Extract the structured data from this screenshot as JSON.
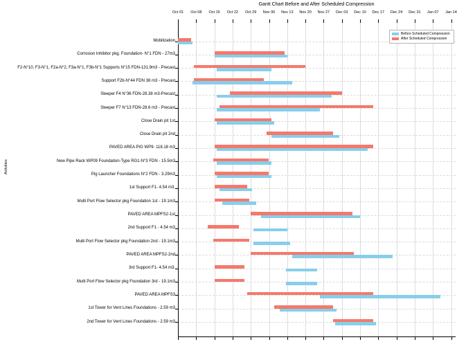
{
  "chart_data": {
    "type": "bar",
    "subtype": "gantt",
    "title": "Gantt Chart Before and After Scheduled Compression",
    "ylabel": "Activities",
    "x_tick_labels": [
      "Oct 01",
      "Oct 08",
      "Oct 15",
      "Oct 22",
      "Oct 29",
      "Nov 06",
      "Nov 13",
      "Nov 20",
      "Nov 27",
      "Dec 03",
      "Dec 10",
      "Dec 17",
      "Dec 24",
      "Dec 31",
      "Jan 07",
      "Jan 14"
    ],
    "x_axis_position": "top",
    "x_days_per_tick": 7,
    "grid": true,
    "legend": {
      "position": "upper-right",
      "entries": [
        {
          "label": "Before Scheduled Compression",
          "color": "#87CEEB"
        },
        {
          "label": "After Scheduled Compression",
          "color": "#F4796B"
        }
      ]
    },
    "colors": {
      "before": "#87CEEB",
      "after": "#F4796B",
      "grid": "#D9D9D9",
      "axis": "#000000"
    },
    "bar_units": "days after Oct 01",
    "tasks": [
      {
        "label": "Mobilization",
        "before": {
          "start": 0,
          "end": 5.5
        },
        "after": {
          "start": 0,
          "end": 5
        }
      },
      {
        "label": "Corrosion Inhibitor pkg. Foundation- N°1 FDN - 27m3",
        "before": {
          "start": 14,
          "end": 42
        },
        "after": {
          "start": 14,
          "end": 41
        }
      },
      {
        "label": "F2-N°10, F3-N°1, F2a-N°2, F3a-N°1, F3b-N°1 Supports N°15 FDN-131.9m3 - Precast",
        "before": {
          "start": 15,
          "end": 36
        },
        "after": {
          "start": 6,
          "end": 49
        }
      },
      {
        "label": "Support F2b-N°44 FDN 38 m3 - Precast",
        "before": {
          "start": 5.5,
          "end": 44
        },
        "after": {
          "start": 6,
          "end": 33
        }
      },
      {
        "label": "Sleeper F4 N°36 FDN-28.38 m3-Precast",
        "before": {
          "start": 15,
          "end": 59
        },
        "after": {
          "start": 20,
          "end": 63
        }
      },
      {
        "label": "Sleeper F7 N°13 FDN-28.6 m3 - Precast",
        "before": {
          "start": 15,
          "end": 54.5
        },
        "after": {
          "start": 16,
          "end": 75
        }
      },
      {
        "label": "Close Drain pit 1st",
        "before": {
          "start": 15,
          "end": 37
        },
        "after": {
          "start": 14,
          "end": 36
        }
      },
      {
        "label": "Close Drain pit 2nd",
        "before": {
          "start": 36,
          "end": 62
        },
        "after": {
          "start": 34,
          "end": 59.5
        }
      },
      {
        "label": "PAVED AREA PIG WP9- 118.18 m3",
        "before": {
          "start": 15,
          "end": 73
        },
        "after": {
          "start": 14,
          "end": 75
        }
      },
      {
        "label": "New Pipe Rack WP09 Foundation-Type RG1-N°3 FDN - 15.5m3",
        "before": {
          "start": 15,
          "end": 36
        },
        "after": {
          "start": 13.5,
          "end": 35
        }
      },
      {
        "label": "Pig Launcher Foundations N°2 FDN - 3.29m3",
        "before": {
          "start": 15,
          "end": 36
        },
        "after": {
          "start": 14,
          "end": 35
        }
      },
      {
        "label": "1st Support F1- 4.54 m3.",
        "before": {
          "start": 16,
          "end": 28.5
        },
        "after": {
          "start": 14,
          "end": 26.5
        }
      },
      {
        "label": "Multi Port Flow Selector pkg Foundation 1st - 19.1m3",
        "before": {
          "start": 17,
          "end": 30
        },
        "after": {
          "start": 14,
          "end": 27.5
        }
      },
      {
        "label": "PAVED AREA MPFS2-1st",
        "before": {
          "start": 32,
          "end": 70
        },
        "after": {
          "start": 28,
          "end": 67
        }
      },
      {
        "label": "2nd Support F1 - 4.54 m3",
        "before": {
          "start": 29,
          "end": 42
        },
        "after": {
          "start": 11.5,
          "end": 23.5
        }
      },
      {
        "label": "Multi Port Flow Selector pkg Foundation 2nd - 19.1m3",
        "before": {
          "start": 29,
          "end": 43
        },
        "after": {
          "start": 13.5,
          "end": 27.5
        }
      },
      {
        "label": "PAVED AREA MPFS2-2nd",
        "before": {
          "start": 44,
          "end": 82.5
        },
        "after": {
          "start": 28,
          "end": 67.5
        }
      },
      {
        "label": "3rd Support F1- 4.54 m3.",
        "before": {
          "start": 41.5,
          "end": 53.5
        },
        "after": {
          "start": 14,
          "end": 25.5
        }
      },
      {
        "label": "Multi Port Flow Selector pkg Foundation 3rd - 19.1m3",
        "before": {
          "start": 41.5,
          "end": 53.5
        },
        "after": {
          "start": 14,
          "end": 25.5
        }
      },
      {
        "label": "PAVED AREA MPFS3",
        "before": {
          "start": 54.5,
          "end": 101
        },
        "after": {
          "start": 26.5,
          "end": 75
        }
      },
      {
        "label": "1st Tower for Vent Lines Foundations - 2.59 m3",
        "before": {
          "start": 39,
          "end": 61
        },
        "after": {
          "start": 37,
          "end": 59.5
        }
      },
      {
        "label": "2nd Tower for Vent Lines Foundations - 2.59 m3",
        "before": {
          "start": 60.5,
          "end": 76
        },
        "after": {
          "start": 59.5,
          "end": 75
        }
      }
    ]
  }
}
